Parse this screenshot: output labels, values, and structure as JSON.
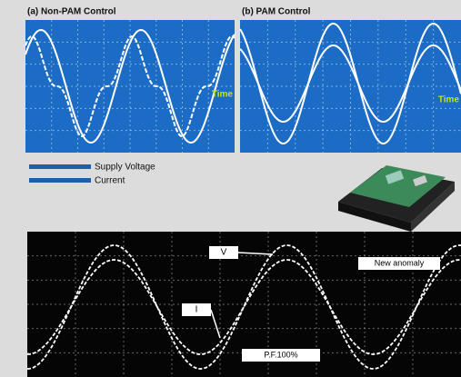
{
  "panel_a": {
    "title": "(a) Non-PAM Control",
    "axis_label": "Time"
  },
  "panel_b": {
    "title": "(b) PAM Control",
    "axis_label": "Time"
  },
  "legend": {
    "items": [
      "Supply Voltage",
      "Current"
    ]
  },
  "scope": {
    "voltage_label": "V",
    "current_label": "I",
    "callout": "New anomaly",
    "power_factor": "P.F.100%"
  }
}
